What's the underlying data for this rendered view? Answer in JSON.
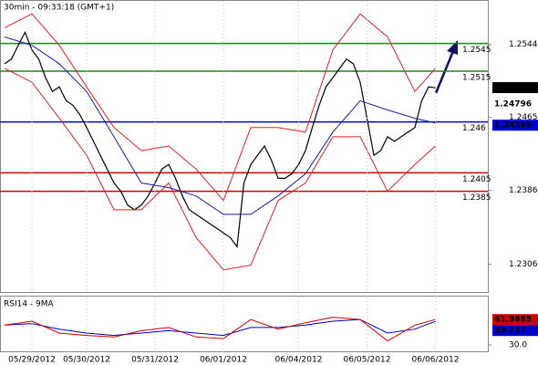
{
  "chart_data": [
    {
      "type": "line",
      "title": "30min - 09:33:18 (GMT+1)",
      "xlim": [
        -0.667,
        70.667
      ],
      "ylim": [
        1.2276,
        1.2592
      ],
      "yticks": [
        1.2544,
        1.2465,
        1.2386,
        1.2306
      ],
      "series": [
        {
          "color": "#000000",
          "x": [
            0,
            1,
            2,
            3,
            4,
            5,
            6,
            7,
            8,
            9,
            10,
            11,
            12,
            13,
            14,
            15,
            16,
            17,
            18,
            19,
            20,
            21,
            22,
            23,
            24,
            25,
            26,
            27,
            28,
            29,
            30,
            31,
            32,
            33,
            34,
            35,
            36,
            37,
            38,
            39,
            40,
            41,
            42,
            43,
            44,
            45,
            46,
            47,
            48,
            49,
            50,
            51,
            52,
            53,
            54,
            55,
            56,
            57,
            58,
            59,
            60,
            61,
            62,
            63
          ],
          "values": [
            1.2523,
            1.2528,
            1.2543,
            1.2557,
            1.2538,
            1.2528,
            1.2508,
            1.2493,
            1.2498,
            1.2483,
            1.2478,
            1.2468,
            1.2454,
            1.2439,
            1.2424,
            1.2409,
            1.2394,
            1.2385,
            1.237,
            1.2365,
            1.237,
            1.238,
            1.2394,
            1.2409,
            1.2414,
            1.2399,
            1.238,
            1.2365,
            1.236,
            1.2355,
            1.235,
            1.2345,
            1.234,
            1.2335,
            1.2325,
            1.2394,
            1.2414,
            1.2424,
            1.2434,
            1.2419,
            1.2399,
            1.2399,
            1.2404,
            1.2414,
            1.2429,
            1.2454,
            1.2478,
            1.2498,
            1.2508,
            1.2518,
            1.2528,
            1.2523,
            1.2503,
            1.2464,
            1.2424,
            1.2429,
            1.2444,
            1.2439,
            1.2444,
            1.2449,
            1.2454,
            1.2483,
            1.2498,
            1.2497
          ]
        },
        {
          "color": "#dd2222",
          "x": [
            0,
            4,
            8,
            12,
            16,
            20,
            24,
            28,
            32,
            36,
            40,
            44,
            48,
            52,
            56,
            60,
            63
          ],
          "values": [
            1.2562,
            1.2577,
            1.2543,
            1.2498,
            1.2454,
            1.2429,
            1.2434,
            1.2409,
            1.2375,
            1.2454,
            1.2454,
            1.2449,
            1.2538,
            1.2577,
            1.2552,
            1.2493,
            1.2518
          ]
        },
        {
          "color": "#dd2222",
          "x": [
            0,
            4,
            8,
            12,
            16,
            20,
            24,
            28,
            32,
            36,
            40,
            44,
            48,
            52,
            56,
            60,
            63
          ],
          "values": [
            1.2518,
            1.2503,
            1.2464,
            1.2424,
            1.2365,
            1.2365,
            1.2394,
            1.2335,
            1.23,
            1.2305,
            1.2375,
            1.2394,
            1.2444,
            1.2444,
            1.2385,
            1.2414,
            1.2434
          ]
        },
        {
          "color": "#1a1aaa",
          "x": [
            0,
            4,
            8,
            12,
            16,
            20,
            24,
            28,
            32,
            36,
            40,
            44,
            48,
            52,
            56,
            60,
            63
          ],
          "values": [
            1.2552,
            1.2543,
            1.2523,
            1.2493,
            1.2444,
            1.2394,
            1.2389,
            1.238,
            1.236,
            1.236,
            1.238,
            1.2404,
            1.2449,
            1.2483,
            1.2473,
            1.2464,
            1.2459
          ]
        }
      ],
      "levels": [
        {
          "value": 1.2545,
          "color": "#1a8a1a"
        },
        {
          "value": 1.2515,
          "color": "#1a8a1a"
        },
        {
          "value": 1.246,
          "color": "#0000cc"
        },
        {
          "value": 1.2405,
          "color": "#cc0000"
        },
        {
          "value": 1.2385,
          "color": "#cc0000"
        }
      ],
      "right_labels": [
        {
          "value": 1.24972,
          "color": "#000000",
          "box": true
        },
        {
          "value": 1.24796,
          "color": "#cc0000",
          "box": false
        },
        {
          "value": 1.24565,
          "color": "#0000cc",
          "box": true
        }
      ]
    },
    {
      "type": "line",
      "title": "RSI14 - 9MA",
      "xlim": [
        -0.667,
        70.667
      ],
      "ylim": [
        22,
        91
      ],
      "yticks": [
        {
          "value": 30,
          "label": "30.0"
        }
      ],
      "xticks": [
        {
          "value": 4,
          "label": "05/29/2012"
        },
        {
          "value": 12,
          "label": "05/30/2012"
        },
        {
          "value": 22,
          "label": "05/31/2012"
        },
        {
          "value": 32,
          "label": "06/01/2012"
        },
        {
          "value": 43,
          "label": "06/04/2012"
        },
        {
          "value": 53,
          "label": "06/05/2012"
        },
        {
          "value": 63,
          "label": "06/06/2012"
        }
      ],
      "series": [
        {
          "color": "#0000cc",
          "x": [
            0,
            4,
            8,
            12,
            16,
            20,
            24,
            28,
            32,
            36,
            40,
            44,
            48,
            52,
            56,
            60,
            63
          ],
          "values": [
            55,
            57,
            50,
            45,
            42,
            45,
            48,
            45,
            42,
            52,
            52,
            55,
            60,
            62,
            45,
            50,
            59.757
          ]
        },
        {
          "color": "#cc0000",
          "x": [
            0,
            4,
            8,
            12,
            16,
            20,
            24,
            28,
            32,
            36,
            40,
            44,
            48,
            52,
            56,
            60,
            63
          ],
          "values": [
            55,
            60,
            45,
            42,
            40,
            48,
            52,
            40,
            38,
            62,
            50,
            58,
            65,
            62,
            35,
            55,
            61.9885
          ]
        }
      ],
      "right_labels": [
        {
          "value": 61.9885,
          "color": "#cc0000",
          "box": true
        },
        {
          "value": 59.757,
          "color": "#0000cc",
          "box": true
        }
      ]
    }
  ]
}
